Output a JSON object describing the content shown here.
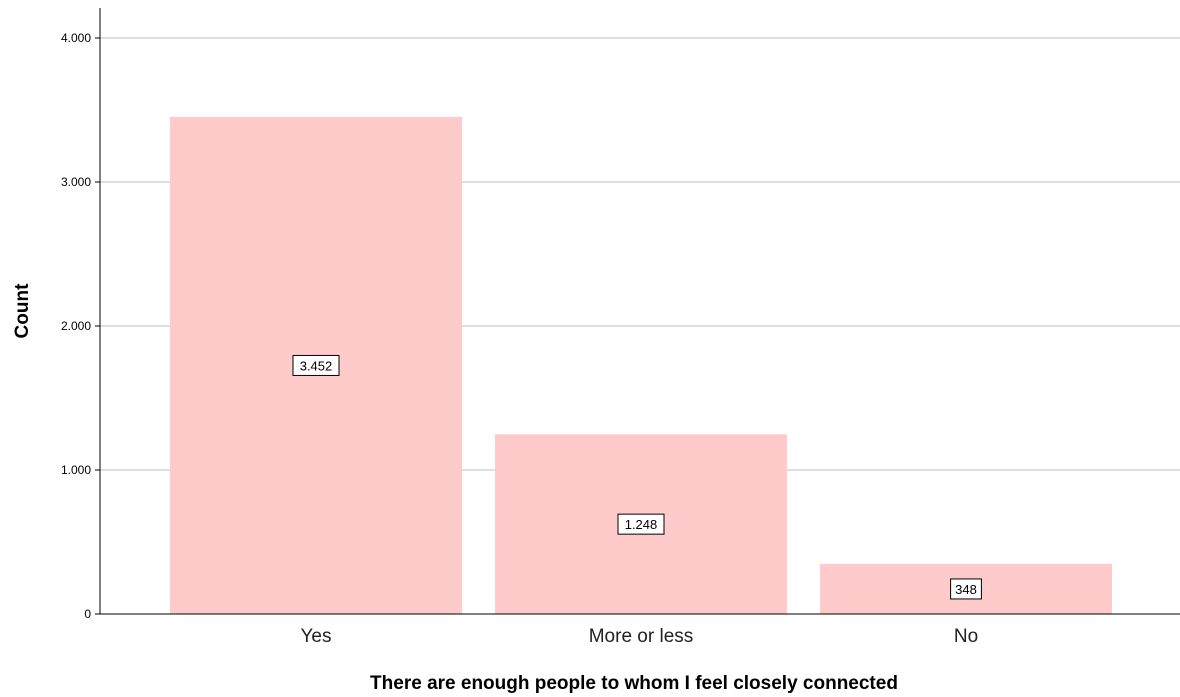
{
  "chart_data": {
    "type": "bar",
    "title": "",
    "xlabel": "There are enough people to whom I feel closely connected",
    "ylabel": "Count",
    "categories": [
      "Yes",
      "More or less",
      "No"
    ],
    "values": [
      3452,
      1248,
      348
    ],
    "data_labels": [
      "3.452",
      "1.248",
      "348"
    ],
    "yticks": [
      0,
      1000,
      2000,
      3000,
      4000
    ],
    "ytick_labels": [
      "0",
      "1.000",
      "2.000",
      "3.000",
      "4.000"
    ],
    "ylim": [
      0,
      4200
    ],
    "grid": true,
    "legend": "none",
    "bar_color": "#fecaca"
  }
}
